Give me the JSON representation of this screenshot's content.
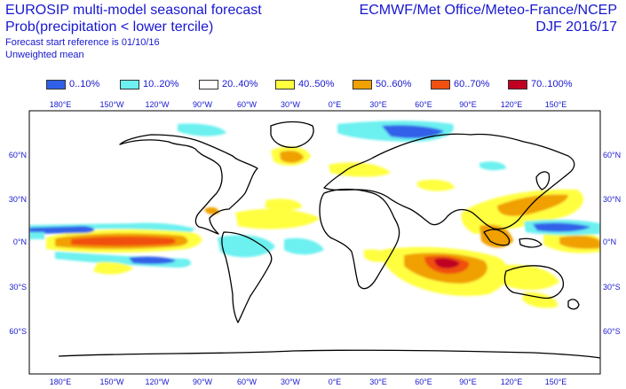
{
  "header": {
    "title_left": "EUROSIP multi-model seasonal forecast",
    "title_left2": "Prob(precipitation < lower tercile)",
    "ref_line": "Forecast start reference is 01/10/16",
    "mean_line": "Unweighted mean",
    "title_right": "ECMWF/Met Office/Meteo-France/NCEP",
    "title_right2": "DJF 2016/17"
  },
  "legend": [
    {
      "label": "0..10%",
      "color": "#3060e8"
    },
    {
      "label": "10..20%",
      "color": "#6cf0f0"
    },
    {
      "label": "20..40%",
      "color": "#ffffff"
    },
    {
      "label": "40..50%",
      "color": "#ffff40"
    },
    {
      "label": "50..60%",
      "color": "#f0a000"
    },
    {
      "label": "60..70%",
      "color": "#f05010"
    },
    {
      "label": "70..100%",
      "color": "#c00020"
    }
  ],
  "axes": {
    "lon_ticks": [
      "180°E",
      "150°W",
      "120°W",
      "90°W",
      "60°W",
      "30°W",
      "0°E",
      "30°E",
      "60°E",
      "90°E",
      "120°E",
      "150°E"
    ],
    "lat_left": [
      "60°N",
      "30°N",
      "0°N",
      "30°S",
      "60°S"
    ],
    "lat_right": [
      "60°N",
      "30°N",
      "0°N",
      "30°S",
      "60°S"
    ]
  }
}
